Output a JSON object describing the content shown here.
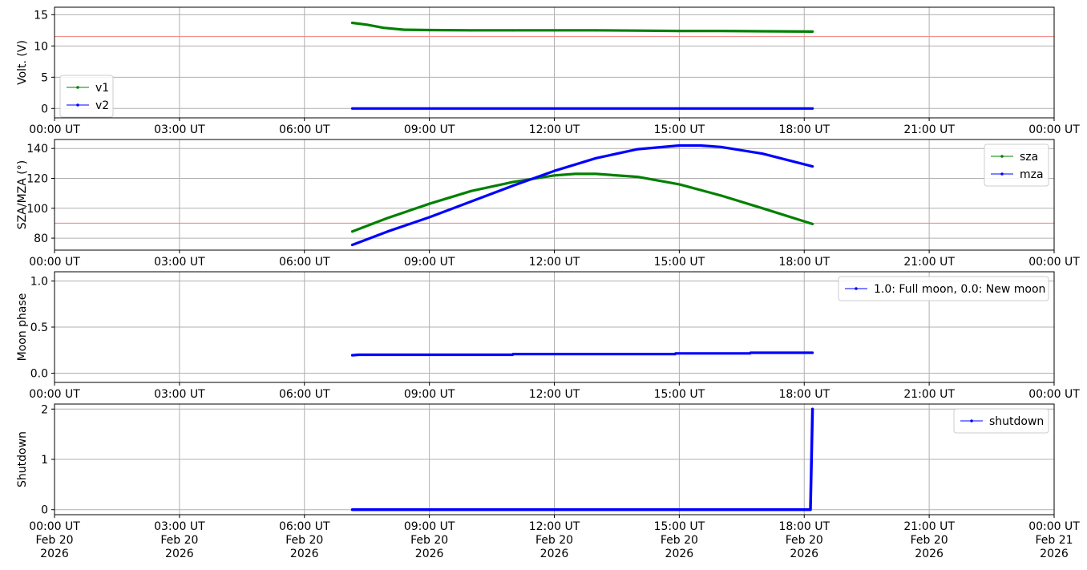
{
  "x_axis": {
    "ticks": [
      0,
      3,
      6,
      9,
      12,
      15,
      18,
      21,
      24
    ],
    "labels": [
      "00:00 UT",
      "03:00 UT",
      "06:00 UT",
      "09:00 UT",
      "12:00 UT",
      "15:00 UT",
      "18:00 UT",
      "21:00 UT",
      "00:00 UT"
    ],
    "date_labels": [
      "Feb 20",
      "Feb 20",
      "Feb 20",
      "Feb 20",
      "Feb 20",
      "Feb 20",
      "Feb 20",
      "Feb 20",
      "Feb 21"
    ],
    "year_labels": [
      "2026",
      "2026",
      "2026",
      "2026",
      "2026",
      "2026",
      "2026",
      "2026",
      "2026"
    ],
    "xlim": [
      0,
      24
    ]
  },
  "chart_data": [
    {
      "type": "line",
      "ylabel": "Volt. (V)",
      "ylim": [
        -1.5,
        16.2
      ],
      "yticks": [
        0,
        5,
        10,
        15
      ],
      "ytick_labels": [
        "0",
        "5",
        "10",
        "15"
      ],
      "grid": true,
      "legend_position": "center-left",
      "reference_line": {
        "y": 11.5,
        "color": "#f08080"
      },
      "series": [
        {
          "name": "v1",
          "color": "#008000",
          "x": [
            7.15,
            7.5,
            7.9,
            8.4,
            9,
            10,
            11,
            12,
            13,
            14,
            15,
            16,
            17,
            18.2
          ],
          "y": [
            13.7,
            13.4,
            12.9,
            12.6,
            12.55,
            12.5,
            12.5,
            12.5,
            12.5,
            12.45,
            12.4,
            12.4,
            12.35,
            12.3
          ]
        },
        {
          "name": "v2",
          "color": "#0000ff",
          "x": [
            7.15,
            9,
            12,
            15,
            18.2
          ],
          "y": [
            0,
            0,
            0,
            0,
            0
          ]
        }
      ]
    },
    {
      "type": "line",
      "ylabel": "SZA/MZA (°)",
      "ylim": [
        72,
        146
      ],
      "yticks": [
        80,
        100,
        120,
        140
      ],
      "ytick_labels": [
        "80",
        "100",
        "120",
        "140"
      ],
      "grid": true,
      "legend_position": "upper-right",
      "reference_line": {
        "y": 90,
        "color": "#f08080"
      },
      "series": [
        {
          "name": "sza",
          "color": "#008000",
          "x": [
            7.15,
            8,
            9,
            10,
            11,
            12,
            12.5,
            13,
            14,
            15,
            16,
            17,
            18.2
          ],
          "y": [
            84.5,
            93.5,
            103,
            111.5,
            117.5,
            122,
            123,
            123,
            121,
            116,
            108.5,
            100,
            89.5
          ]
        },
        {
          "name": "mza",
          "color": "#0000ff",
          "x": [
            7.15,
            8,
            9,
            10,
            11,
            12,
            13,
            14,
            15,
            15.5,
            16,
            17,
            18.2
          ],
          "y": [
            75.5,
            84.5,
            94,
            104.5,
            115,
            125,
            133.5,
            139.5,
            142,
            142,
            141,
            136.5,
            128
          ]
        }
      ]
    },
    {
      "type": "line",
      "ylabel": "Moon phase",
      "ylim": [
        -0.1,
        1.1
      ],
      "yticks": [
        0.0,
        0.5,
        1.0
      ],
      "ytick_labels": [
        "0.0",
        "0.5",
        "1.0"
      ],
      "grid": true,
      "legend_position": "upper-right",
      "series": [
        {
          "name": "1.0: Full moon, 0.0: New moon",
          "color": "#0000ff",
          "x": [
            7.15,
            7.3,
            11,
            11.01,
            14.9,
            14.91,
            16.7,
            16.71,
            18.2
          ],
          "y": [
            0.195,
            0.2,
            0.2,
            0.207,
            0.207,
            0.215,
            0.215,
            0.222,
            0.222
          ]
        }
      ]
    },
    {
      "type": "line",
      "ylabel": "Shutdown",
      "ylim": [
        -0.1,
        2.1
      ],
      "yticks": [
        0,
        1,
        2
      ],
      "ytick_labels": [
        "0",
        "1",
        "2"
      ],
      "grid": true,
      "legend_position": "upper-right",
      "series": [
        {
          "name": "shutdown",
          "color": "#0000ff",
          "x": [
            7.15,
            9,
            12,
            15,
            18.05,
            18.15,
            18.2
          ],
          "y": [
            0,
            0,
            0,
            0,
            0,
            0,
            2
          ]
        }
      ]
    }
  ]
}
